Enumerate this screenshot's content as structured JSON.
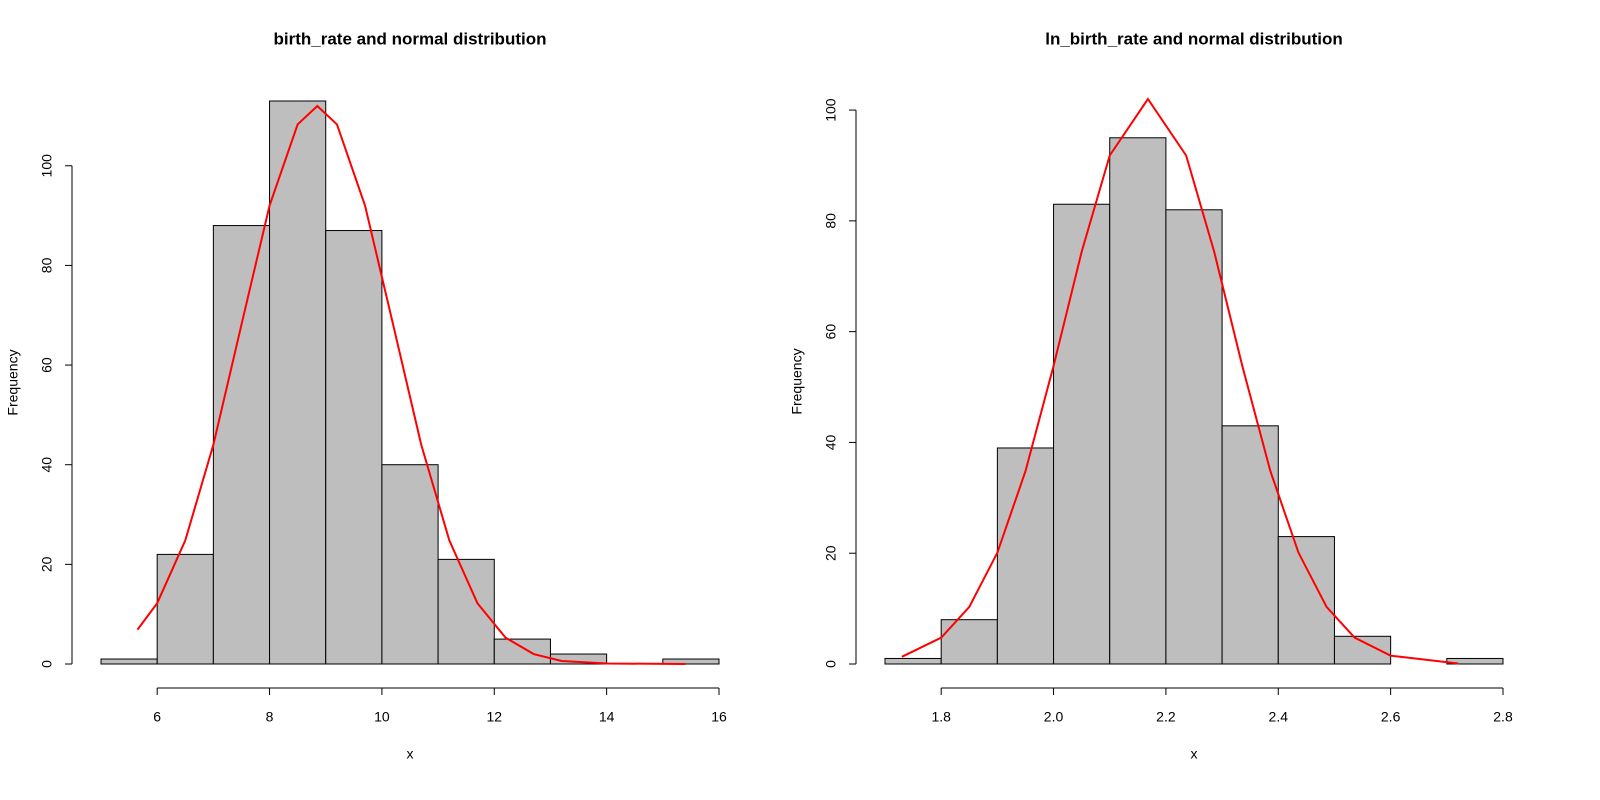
{
  "chart_data": [
    {
      "type": "histogram",
      "title": "birth_rate and normal distribution",
      "x_label": "x",
      "y_label": "Frequency",
      "bins": [
        5,
        6,
        7,
        8,
        9,
        10,
        11,
        12,
        13,
        14,
        15,
        16
      ],
      "counts": [
        1,
        22,
        88,
        113,
        87,
        40,
        21,
        5,
        2,
        0,
        1
      ],
      "color": "#bebebe",
      "xlim": [
        5,
        16
      ],
      "ylim": [
        0,
        113
      ],
      "xticks": [
        6,
        8,
        10,
        12,
        14,
        16
      ],
      "yticks": [
        0,
        20,
        40,
        60,
        80,
        100
      ],
      "curve": {
        "color": "#ff0000",
        "x": [
          5.65,
          6,
          6.5,
          7,
          7.5,
          8,
          8.5,
          8.85,
          9.2,
          9.7,
          10.2,
          10.7,
          11.2,
          11.7,
          12.2,
          12.7,
          13.2,
          14,
          15.4
        ],
        "values": [
          6.9,
          12.2,
          24.8,
          44,
          68.1,
          92,
          108.3,
          112,
          108.3,
          92,
          68.1,
          44,
          24.8,
          12.2,
          5.3,
          2,
          0.6,
          0.1,
          0
        ]
      }
    },
    {
      "type": "histogram",
      "title": "ln_birth_rate and normal distribution",
      "x_label": "x",
      "y_label": "Frequency",
      "bins": [
        1.7,
        1.8,
        1.9,
        2.0,
        2.1,
        2.2,
        2.3,
        2.4,
        2.5,
        2.6,
        2.7,
        2.8
      ],
      "counts": [
        1,
        8,
        39,
        83,
        95,
        82,
        43,
        23,
        5,
        0,
        1
      ],
      "color": "#bebebe",
      "xlim": [
        1.7,
        2.8
      ],
      "ylim": [
        0,
        102
      ],
      "xticks": [
        1.8,
        {
          "value": 2,
          "label": "2.0"
        },
        2.2,
        2.4,
        2.6,
        2.8
      ],
      "yticks": [
        0,
        20,
        40,
        60,
        80,
        100
      ],
      "curve": {
        "color": "#ff0000",
        "x": [
          1.73,
          1.8,
          1.85,
          1.9,
          1.95,
          2.0,
          2.05,
          2.1,
          2.168,
          2.236,
          2.286,
          2.336,
          2.386,
          2.436,
          2.486,
          2.536,
          2.6,
          2.72
        ],
        "values": [
          1.3,
          4.75,
          10.3,
          20.1,
          34.8,
          53.8,
          74.4,
          91.8,
          102,
          91.8,
          74.4,
          53.8,
          34.8,
          20.1,
          10.3,
          4.75,
          1.5,
          0.1
        ]
      }
    }
  ]
}
